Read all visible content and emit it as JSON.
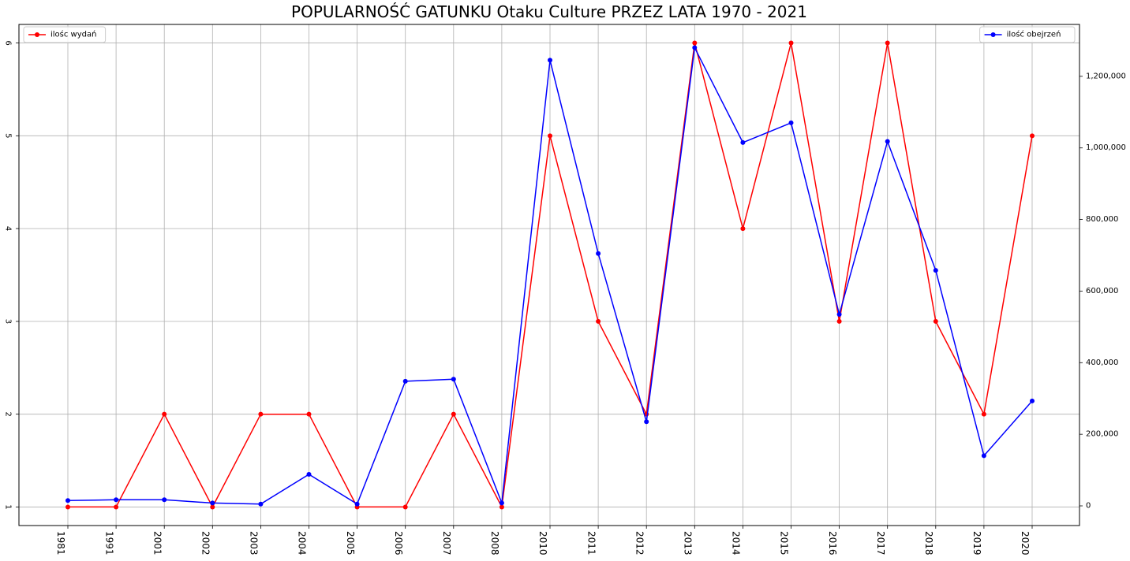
{
  "chart_data": {
    "type": "line",
    "title": "POPULARNOŚĆ GATUNKU Otaku Culture PRZEZ LATA 1970 - 2021",
    "xlabel": "",
    "ylabel": "",
    "categories": [
      "1981",
      "1991",
      "2001",
      "2002",
      "2003",
      "2004",
      "2005",
      "2006",
      "2007",
      "2008",
      "2010",
      "2011",
      "2012",
      "2013",
      "2014",
      "2015",
      "2016",
      "2017",
      "2018",
      "2019",
      "2020"
    ],
    "left_axis": {
      "ylim": [
        0.8,
        6.2
      ],
      "ticks": [
        1,
        2,
        3,
        4,
        5,
        6
      ],
      "tick_labels": [
        "1",
        "2",
        "3",
        "4",
        "5",
        "6"
      ]
    },
    "right_axis": {
      "ylim": [
        -55000,
        1345000
      ],
      "ticks": [
        0,
        200000,
        400000,
        600000,
        800000,
        1000000,
        1200000
      ],
      "tick_labels": [
        "0",
        "200,000",
        "400,000",
        "600,000",
        "800,000",
        "1,000,000",
        "1,200,000"
      ]
    },
    "grid": true,
    "series": [
      {
        "name": "ilośc wydań",
        "axis": "left",
        "color": "#ff0000",
        "legend_position": "top-left",
        "values": [
          1,
          1,
          2,
          1,
          2,
          2,
          1,
          1,
          2,
          1,
          5,
          3,
          2,
          6,
          4,
          6,
          3,
          6,
          3,
          2,
          5
        ]
      },
      {
        "name": "ilość obejrzeń",
        "axis": "right",
        "color": "#0000ff",
        "legend_position": "top-right",
        "values": [
          15000,
          17000,
          17000,
          8000,
          5000,
          88000,
          5000,
          348000,
          354000,
          8000,
          1245000,
          705000,
          235000,
          1280000,
          1015000,
          1070000,
          535000,
          1018000,
          658000,
          140000,
          293000
        ]
      }
    ]
  }
}
